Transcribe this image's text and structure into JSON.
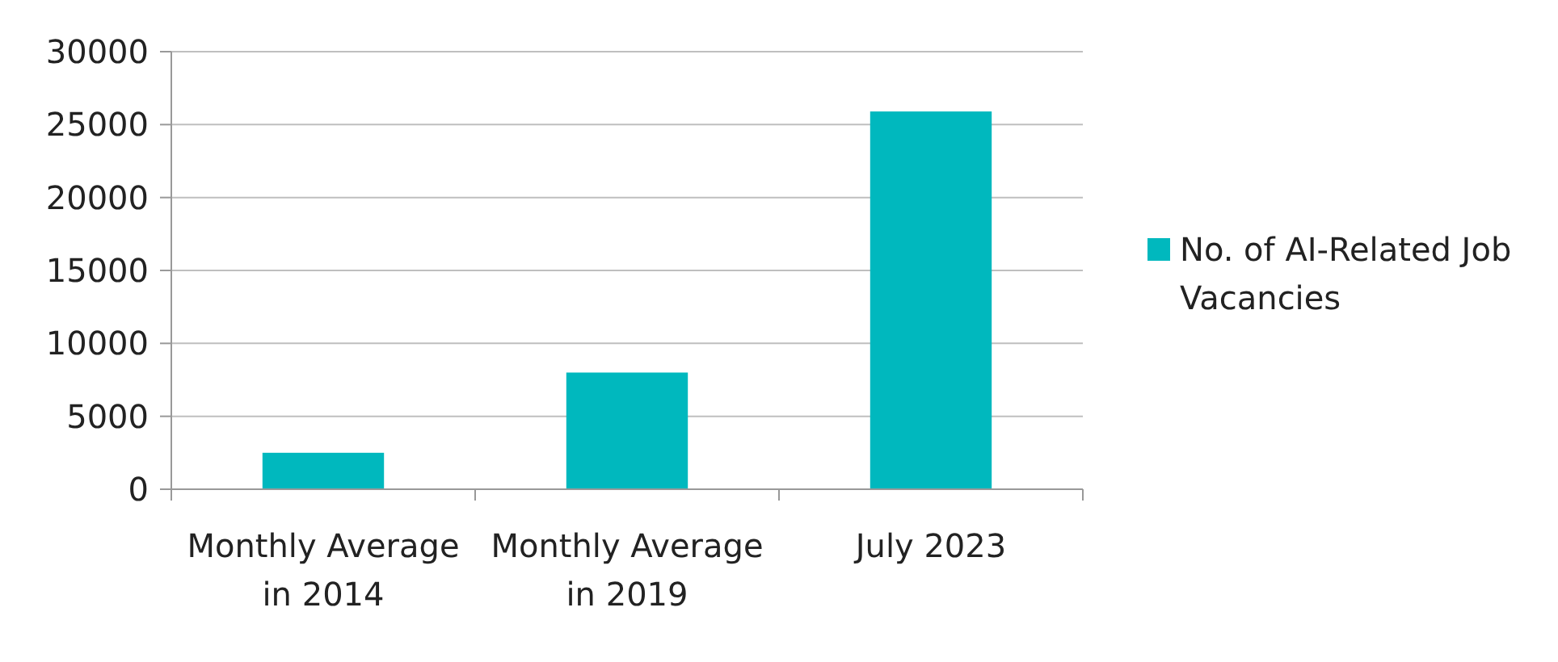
{
  "chart_data": {
    "type": "bar",
    "categories": [
      "Monthly Average in 2014",
      "Monthly Average in 2019",
      "July 2023"
    ],
    "series": [
      {
        "name": "No. of AI-Related Job Vacancies",
        "color": "#00b8be",
        "values": [
          2500,
          8000,
          25900
        ]
      }
    ],
    "ylim": [
      0,
      30000
    ],
    "yticks": [
      0,
      5000,
      10000,
      15000,
      20000,
      25000,
      30000
    ],
    "grid": "y",
    "legend": "right"
  }
}
